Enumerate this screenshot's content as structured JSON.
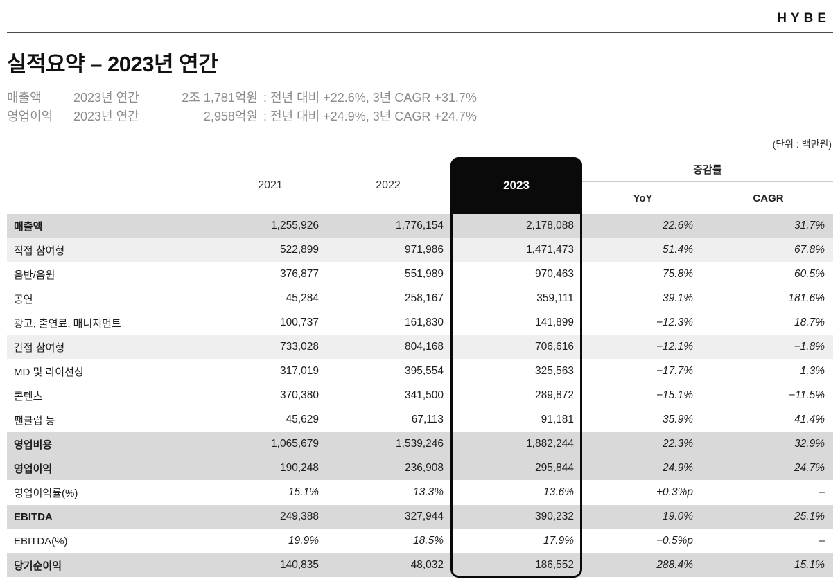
{
  "brand": {
    "logo": "HYBE"
  },
  "header": {
    "title": "실적요약 – 2023년 연간",
    "summary": [
      {
        "label": "매출액",
        "period": "2023년 연간",
        "amount": "2조 1,781억원",
        "detail": ": 전년 대비  +22.6%, 3년 CAGR  +31.7%"
      },
      {
        "label": "영업이익",
        "period": "2023년 연간",
        "amount": "2,958억원",
        "detail": ": 전년 대비  +24.9%, 3년 CAGR  +24.7%"
      }
    ],
    "unit_note": "(단위 : 백만원)"
  },
  "table": {
    "col_headers": {
      "y2021": "2021",
      "y2022": "2022",
      "y2023": "2023",
      "growth_group": "증감률",
      "yoy": "YoY",
      "cagr": "CAGR"
    },
    "rows": [
      {
        "label": "매출액",
        "y2021": "1,255,926",
        "y2022": "1,776,154",
        "y2023": "2,178,088",
        "yoy": "22.6%",
        "cagr": "31.7%"
      },
      {
        "label": "직접 참여형",
        "y2021": "522,899",
        "y2022": "971,986",
        "y2023": "1,471,473",
        "yoy": "51.4%",
        "cagr": "67.8%"
      },
      {
        "label": "음반/음원",
        "y2021": "376,877",
        "y2022": "551,989",
        "y2023": "970,463",
        "yoy": "75.8%",
        "cagr": "60.5%"
      },
      {
        "label": "공연",
        "y2021": "45,284",
        "y2022": "258,167",
        "y2023": "359,111",
        "yoy": "39.1%",
        "cagr": "181.6%"
      },
      {
        "label": "광고, 출연료, 매니지먼트",
        "y2021": "100,737",
        "y2022": "161,830",
        "y2023": "141,899",
        "yoy": "−12.3%",
        "cagr": "18.7%"
      },
      {
        "label": "간접 참여형",
        "y2021": "733,028",
        "y2022": "804,168",
        "y2023": "706,616",
        "yoy": "−12.1%",
        "cagr": "−1.8%"
      },
      {
        "label": "MD 및 라이선싱",
        "y2021": "317,019",
        "y2022": "395,554",
        "y2023": "325,563",
        "yoy": "−17.7%",
        "cagr": "1.3%"
      },
      {
        "label": "콘텐츠",
        "y2021": "370,380",
        "y2022": "341,500",
        "y2023": "289,872",
        "yoy": "−15.1%",
        "cagr": "−11.5%"
      },
      {
        "label": "팬클럽 등",
        "y2021": "45,629",
        "y2022": "67,113",
        "y2023": "91,181",
        "yoy": "35.9%",
        "cagr": "41.4%"
      },
      {
        "label": "영업비용",
        "y2021": "1,065,679",
        "y2022": "1,539,246",
        "y2023": "1,882,244",
        "yoy": "22.3%",
        "cagr": "32.9%"
      },
      {
        "label": "영업이익",
        "y2021": "190,248",
        "y2022": "236,908",
        "y2023": "295,844",
        "yoy": "24.9%",
        "cagr": "24.7%"
      },
      {
        "label": "영업이익률(%)",
        "y2021": "15.1%",
        "y2022": "13.3%",
        "y2023": "13.6%",
        "yoy": "+0.3%p",
        "cagr": "–"
      },
      {
        "label": "EBITDA",
        "y2021": "249,388",
        "y2022": "327,944",
        "y2023": "390,232",
        "yoy": "19.0%",
        "cagr": "25.1%"
      },
      {
        "label": "EBITDA(%)",
        "y2021": "19.9%",
        "y2022": "18.5%",
        "y2023": "17.9%",
        "yoy": "−0.5%p",
        "cagr": "–"
      },
      {
        "label": "당기순이익",
        "y2021": "140,835",
        "y2022": "48,032",
        "y2023": "186,552",
        "yoy": "288.4%",
        "cagr": "15.1%"
      }
    ]
  },
  "colors": {
    "highlight_box": "#0a0a0a",
    "total_row_bg": "#d9d9d9",
    "subtotal_row_bg": "#efefef",
    "text": "#1d1d1d",
    "summary_text": "#8c8c8c"
  }
}
